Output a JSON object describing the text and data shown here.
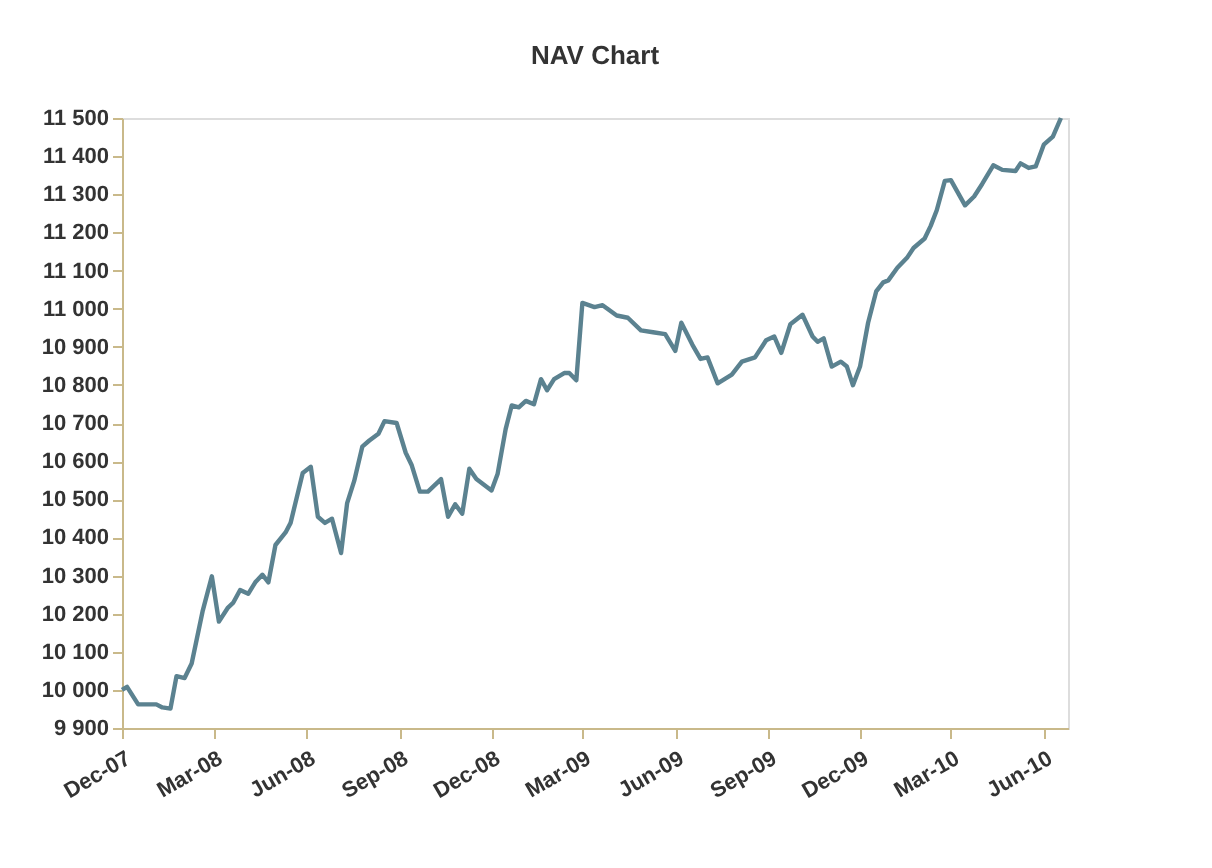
{
  "chart_data": {
    "type": "line",
    "title": "NAV Chart",
    "x": [
      "2007-12-01",
      "2007-12-06",
      "2007-12-17",
      "2008-01-04",
      "2008-01-10",
      "2008-01-18",
      "2008-01-24",
      "2008-02-01",
      "2008-02-08",
      "2008-02-19",
      "2008-02-28",
      "2008-03-06",
      "2008-03-15",
      "2008-03-20",
      "2008-03-27",
      "2008-04-04",
      "2008-04-11",
      "2008-04-18",
      "2008-04-24",
      "2008-05-01",
      "2008-05-11",
      "2008-05-16",
      "2008-05-28",
      "2008-06-05",
      "2008-06-12",
      "2008-06-19",
      "2008-06-26",
      "2008-07-05",
      "2008-07-11",
      "2008-07-18",
      "2008-07-26",
      "2008-08-02",
      "2008-08-11",
      "2008-08-17",
      "2008-08-29",
      "2008-09-07",
      "2008-09-13",
      "2008-09-21",
      "2008-09-29",
      "2008-10-12",
      "2008-10-19",
      "2008-10-26",
      "2008-11-02",
      "2008-11-09",
      "2008-11-16",
      "2008-12-01",
      "2008-12-07",
      "2008-12-15",
      "2008-12-21",
      "2008-12-28",
      "2009-01-04",
      "2009-01-12",
      "2009-01-19",
      "2009-01-25",
      "2009-02-01",
      "2009-02-11",
      "2009-02-16",
      "2009-02-23",
      "2009-03-01",
      "2009-03-13",
      "2009-03-21",
      "2009-04-04",
      "2009-04-15",
      "2009-04-28",
      "2009-05-10",
      "2009-05-22",
      "2009-06-01",
      "2009-06-07",
      "2009-06-18",
      "2009-06-26",
      "2009-07-03",
      "2009-07-13",
      "2009-07-27",
      "2009-08-06",
      "2009-08-19",
      "2009-08-30",
      "2009-09-07",
      "2009-09-14",
      "2009-09-23",
      "2009-10-05",
      "2009-10-15",
      "2009-10-20",
      "2009-10-26",
      "2009-11-03",
      "2009-11-12",
      "2009-11-18",
      "2009-11-24",
      "2009-12-01",
      "2009-12-09",
      "2009-12-17",
      "2009-12-24",
      "2009-12-29",
      "2010-01-07",
      "2010-01-17",
      "2010-01-23",
      "2010-02-03",
      "2010-02-09",
      "2010-02-15",
      "2010-02-23",
      "2010-03-01",
      "2010-03-15",
      "2010-03-24",
      "2010-04-01",
      "2010-04-12",
      "2010-04-21",
      "2010-05-04",
      "2010-05-09",
      "2010-05-17",
      "2010-05-24",
      "2010-06-01",
      "2010-06-10",
      "2010-06-18"
    ],
    "series": [
      {
        "color": "#5b8290",
        "values": [
          10000,
          10008,
          9962,
          9962,
          9954,
          9951,
          10036,
          10031,
          10069,
          10208,
          10298,
          10179,
          10216,
          10228,
          10262,
          10252,
          10282,
          10302,
          10282,
          10380,
          10413,
          10438,
          10569,
          10585,
          10454,
          10438,
          10449,
          10359,
          10490,
          10548,
          10638,
          10654,
          10672,
          10705,
          10700,
          10622,
          10589,
          10520,
          10520,
          10553,
          10454,
          10487,
          10462,
          10580,
          10553,
          10523,
          10566,
          10684,
          10746,
          10741,
          10758,
          10749,
          10815,
          10786,
          10815,
          10831,
          10831,
          10812,
          11015,
          11004,
          11009,
          10982,
          10976,
          10943,
          10938,
          10933,
          10889,
          10963,
          10905,
          10868,
          10872,
          10804,
          10827,
          10861,
          10872,
          10917,
          10927,
          10884,
          10959,
          10984,
          10927,
          10913,
          10922,
          10848,
          10861,
          10848,
          10799,
          10848,
          10963,
          11045,
          11069,
          11074,
          11107,
          11135,
          11159,
          11184,
          11217,
          11258,
          11335,
          11337,
          11271,
          11294,
          11327,
          11376,
          11364,
          11361,
          11381,
          11369,
          11373,
          11430,
          11451,
          11500
        ]
      }
    ],
    "xlim": [
      "2007-12-01",
      "2010-06-25"
    ],
    "xticks": [
      {
        "value": "2007-12-01",
        "label": "Dec-07"
      },
      {
        "value": "2008-03-01",
        "label": "Mar-08"
      },
      {
        "value": "2008-06-01",
        "label": "Jun-08"
      },
      {
        "value": "2008-09-01",
        "label": "Sep-08"
      },
      {
        "value": "2008-12-01",
        "label": "Dec-08"
      },
      {
        "value": "2009-03-01",
        "label": "Mar-09"
      },
      {
        "value": "2009-06-01",
        "label": "Jun-09"
      },
      {
        "value": "2009-09-01",
        "label": "Sep-09"
      },
      {
        "value": "2009-12-01",
        "label": "Dec-09"
      },
      {
        "value": "2010-03-01",
        "label": "Mar-10"
      },
      {
        "value": "2010-06-01",
        "label": "Jun-10"
      }
    ],
    "ylim": [
      9900,
      11500
    ],
    "yticks": [
      {
        "value": 9900,
        "label": "9 900"
      },
      {
        "value": 10000,
        "label": "10 000"
      },
      {
        "value": 10100,
        "label": "10 100"
      },
      {
        "value": 10200,
        "label": "10 200"
      },
      {
        "value": 10300,
        "label": "10 300"
      },
      {
        "value": 10400,
        "label": "10 400"
      },
      {
        "value": 10500,
        "label": "10 500"
      },
      {
        "value": 10600,
        "label": "10 600"
      },
      {
        "value": 10700,
        "label": "10 700"
      },
      {
        "value": 10800,
        "label": "10 800"
      },
      {
        "value": 10900,
        "label": "10 900"
      },
      {
        "value": 11000,
        "label": "11 000"
      },
      {
        "value": 11100,
        "label": "11 100"
      },
      {
        "value": 11200,
        "label": "11 200"
      },
      {
        "value": 11300,
        "label": "11 300"
      },
      {
        "value": 11400,
        "label": "11 400"
      },
      {
        "value": 11500,
        "label": "11 500"
      }
    ],
    "grid": false,
    "legend": false,
    "marker": "none",
    "line_style": "solid"
  }
}
